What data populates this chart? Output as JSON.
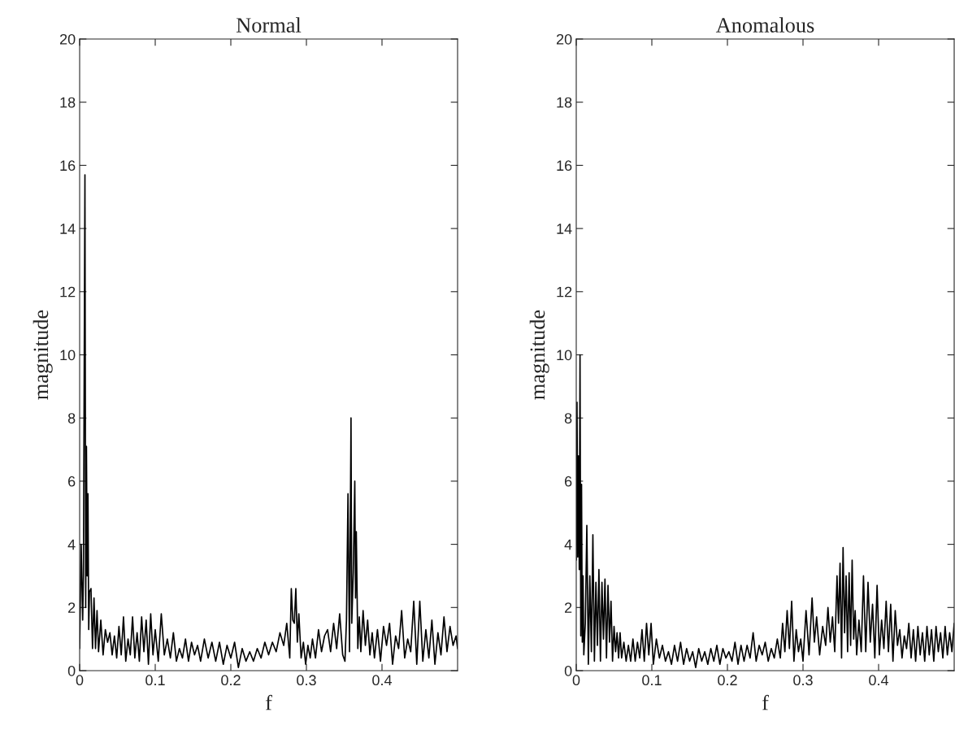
{
  "chart_data": [
    {
      "type": "line",
      "title": "Normal",
      "xlabel": "f",
      "ylabel": "magnitude",
      "xlim": [
        0,
        0.5
      ],
      "xticks": [
        0,
        0.1,
        0.2,
        0.3,
        0.4
      ],
      "ylim": [
        0,
        20
      ],
      "yticks": [
        0,
        2,
        4,
        6,
        8,
        10,
        12,
        14,
        16,
        18,
        20
      ],
      "series": [
        {
          "color": "#000000",
          "x": [
            0,
            0.002,
            0.004,
            0.005,
            0.007,
            0.008,
            0.009,
            0.01,
            0.011,
            0.012,
            0.013,
            0.015,
            0.017,
            0.019,
            0.021,
            0.023,
            0.025,
            0.028,
            0.031,
            0.034,
            0.037,
            0.04,
            0.043,
            0.046,
            0.049,
            0.052,
            0.055,
            0.058,
            0.061,
            0.064,
            0.067,
            0.07,
            0.073,
            0.076,
            0.079,
            0.082,
            0.085,
            0.088,
            0.091,
            0.094,
            0.097,
            0.1,
            0.104,
            0.108,
            0.112,
            0.116,
            0.12,
            0.124,
            0.128,
            0.132,
            0.136,
            0.14,
            0.144,
            0.148,
            0.152,
            0.156,
            0.16,
            0.165,
            0.17,
            0.175,
            0.18,
            0.185,
            0.19,
            0.195,
            0.2,
            0.205,
            0.21,
            0.215,
            0.22,
            0.225,
            0.23,
            0.235,
            0.24,
            0.245,
            0.25,
            0.255,
            0.26,
            0.265,
            0.27,
            0.274,
            0.278,
            0.28,
            0.282,
            0.284,
            0.286,
            0.288,
            0.29,
            0.293,
            0.296,
            0.299,
            0.302,
            0.305,
            0.308,
            0.312,
            0.316,
            0.32,
            0.324,
            0.328,
            0.332,
            0.336,
            0.34,
            0.344,
            0.348,
            0.351,
            0.353,
            0.355,
            0.357,
            0.359,
            0.36,
            0.362,
            0.364,
            0.365,
            0.366,
            0.368,
            0.37,
            0.372,
            0.375,
            0.378,
            0.381,
            0.384,
            0.387,
            0.39,
            0.394,
            0.398,
            0.402,
            0.406,
            0.41,
            0.414,
            0.418,
            0.422,
            0.426,
            0.43,
            0.434,
            0.438,
            0.442,
            0.446,
            0.45,
            0.454,
            0.458,
            0.462,
            0.466,
            0.47,
            0.474,
            0.478,
            0.482,
            0.486,
            0.49,
            0.494,
            0.498,
            0.5
          ],
          "values": [
            0.7,
            4.0,
            1.6,
            3.0,
            15.7,
            2.0,
            7.1,
            3.0,
            5.6,
            1.3,
            2.5,
            2.6,
            0.7,
            2.3,
            0.7,
            1.9,
            0.6,
            1.6,
            0.5,
            1.3,
            0.9,
            1.2,
            0.5,
            1.1,
            0.4,
            1.4,
            0.5,
            1.7,
            0.3,
            1.0,
            0.5,
            1.7,
            0.4,
            1.2,
            0.3,
            1.7,
            0.6,
            1.6,
            0.2,
            1.8,
            0.5,
            1.3,
            0.3,
            1.8,
            0.5,
            1.0,
            0.4,
            1.2,
            0.3,
            0.7,
            0.4,
            1.0,
            0.3,
            0.9,
            0.5,
            0.8,
            0.3,
            1.0,
            0.4,
            0.9,
            0.3,
            0.9,
            0.2,
            0.8,
            0.4,
            0.9,
            0.1,
            0.7,
            0.3,
            0.6,
            0.3,
            0.7,
            0.4,
            0.9,
            0.5,
            0.9,
            0.6,
            1.2,
            0.8,
            1.5,
            0.4,
            2.6,
            1.6,
            1.5,
            2.6,
            0.9,
            1.8,
            0.4,
            0.9,
            0.2,
            0.8,
            0.4,
            1.0,
            0.4,
            1.3,
            0.6,
            1.1,
            1.3,
            0.6,
            1.5,
            0.7,
            1.8,
            0.5,
            0.3,
            1.6,
            5.6,
            0.6,
            8.0,
            1.5,
            3.1,
            6.0,
            2.3,
            4.4,
            0.7,
            1.7,
            0.6,
            1.9,
            0.8,
            1.6,
            0.5,
            1.2,
            0.4,
            1.3,
            0.3,
            1.4,
            0.8,
            1.5,
            0.2,
            1.1,
            0.7,
            1.9,
            0.4,
            1.0,
            0.6,
            2.2,
            0.2,
            2.2,
            0.3,
            1.3,
            0.4,
            1.6,
            0.2,
            1.2,
            0.5,
            1.7,
            0.6,
            1.4,
            0.8,
            1.1,
            0.7
          ]
        }
      ]
    },
    {
      "type": "line",
      "title": "Anomalous",
      "xlabel": "f",
      "ylabel": "magnitude",
      "xlim": [
        0,
        0.5
      ],
      "xticks": [
        0,
        0.1,
        0.2,
        0.3,
        0.4
      ],
      "ylim": [
        0,
        20
      ],
      "yticks": [
        0,
        2,
        4,
        6,
        8,
        10,
        12,
        14,
        16,
        18,
        20
      ],
      "series": [
        {
          "color": "#000000",
          "x": [
            0,
            0.001,
            0.002,
            0.003,
            0.004,
            0.005,
            0.006,
            0.007,
            0.008,
            0.009,
            0.01,
            0.012,
            0.014,
            0.016,
            0.018,
            0.02,
            0.022,
            0.024,
            0.026,
            0.028,
            0.03,
            0.032,
            0.034,
            0.036,
            0.038,
            0.04,
            0.042,
            0.044,
            0.046,
            0.048,
            0.05,
            0.052,
            0.054,
            0.056,
            0.058,
            0.06,
            0.063,
            0.066,
            0.069,
            0.072,
            0.075,
            0.078,
            0.081,
            0.084,
            0.087,
            0.09,
            0.093,
            0.096,
            0.099,
            0.102,
            0.106,
            0.11,
            0.114,
            0.118,
            0.122,
            0.126,
            0.13,
            0.134,
            0.138,
            0.142,
            0.146,
            0.15,
            0.154,
            0.158,
            0.162,
            0.166,
            0.17,
            0.174,
            0.178,
            0.182,
            0.186,
            0.19,
            0.194,
            0.198,
            0.202,
            0.206,
            0.21,
            0.214,
            0.218,
            0.222,
            0.226,
            0.23,
            0.234,
            0.238,
            0.242,
            0.246,
            0.25,
            0.254,
            0.258,
            0.262,
            0.266,
            0.27,
            0.273,
            0.276,
            0.279,
            0.282,
            0.285,
            0.288,
            0.291,
            0.294,
            0.297,
            0.3,
            0.304,
            0.308,
            0.312,
            0.315,
            0.318,
            0.322,
            0.326,
            0.33,
            0.333,
            0.336,
            0.339,
            0.342,
            0.345,
            0.347,
            0.349,
            0.351,
            0.353,
            0.355,
            0.357,
            0.359,
            0.361,
            0.363,
            0.365,
            0.367,
            0.369,
            0.371,
            0.374,
            0.377,
            0.38,
            0.383,
            0.386,
            0.389,
            0.392,
            0.395,
            0.398,
            0.401,
            0.404,
            0.407,
            0.41,
            0.413,
            0.416,
            0.419,
            0.422,
            0.425,
            0.428,
            0.431,
            0.434,
            0.437,
            0.44,
            0.443,
            0.446,
            0.449,
            0.452,
            0.455,
            0.458,
            0.461,
            0.464,
            0.467,
            0.47,
            0.473,
            0.476,
            0.479,
            0.482,
            0.485,
            0.488,
            0.491,
            0.494,
            0.497,
            0.5
          ],
          "values": [
            3.5,
            8.5,
            3.6,
            6.8,
            3.2,
            10.0,
            1.1,
            5.9,
            0.9,
            3.0,
            0.5,
            1.5,
            4.6,
            0.2,
            3.0,
            0.6,
            4.3,
            0.3,
            2.8,
            0.8,
            3.2,
            0.3,
            2.8,
            1.0,
            2.9,
            0.4,
            2.7,
            0.9,
            2.2,
            0.3,
            1.4,
            0.6,
            1.2,
            0.4,
            1.2,
            0.4,
            0.9,
            0.3,
            0.8,
            0.3,
            1.0,
            0.3,
            0.9,
            0.4,
            1.3,
            0.3,
            1.5,
            0.5,
            1.5,
            0.2,
            1.0,
            0.4,
            0.8,
            0.3,
            0.6,
            0.2,
            0.8,
            0.3,
            0.9,
            0.2,
            0.7,
            0.3,
            0.6,
            0.1,
            0.7,
            0.3,
            0.6,
            0.2,
            0.7,
            0.3,
            0.8,
            0.2,
            0.7,
            0.4,
            0.6,
            0.3,
            0.9,
            0.2,
            0.8,
            0.3,
            0.8,
            0.4,
            1.2,
            0.3,
            0.8,
            0.5,
            0.9,
            0.3,
            0.7,
            0.4,
            1.0,
            0.4,
            1.5,
            0.6,
            1.9,
            0.7,
            2.2,
            0.3,
            1.3,
            0.6,
            1.0,
            0.3,
            1.9,
            0.5,
            2.3,
            0.9,
            1.7,
            0.5,
            1.4,
            0.8,
            2.0,
            0.9,
            1.7,
            0.6,
            3.0,
            1.5,
            3.4,
            0.4,
            3.9,
            1.2,
            3.0,
            0.6,
            3.1,
            0.8,
            3.5,
            1.0,
            1.9,
            0.5,
            1.6,
            0.6,
            3.0,
            0.6,
            2.8,
            0.9,
            2.1,
            0.4,
            2.7,
            0.5,
            1.6,
            0.7,
            2.2,
            0.6,
            2.1,
            0.3,
            1.9,
            0.8,
            1.3,
            0.4,
            1.1,
            0.7,
            1.5,
            0.4,
            1.3,
            0.3,
            1.4,
            0.5,
            1.2,
            0.3,
            1.4,
            0.5,
            1.3,
            0.3,
            1.4,
            0.6,
            1.2,
            0.4,
            1.4,
            0.5,
            1.2,
            0.6,
            1.5
          ]
        }
      ]
    }
  ]
}
